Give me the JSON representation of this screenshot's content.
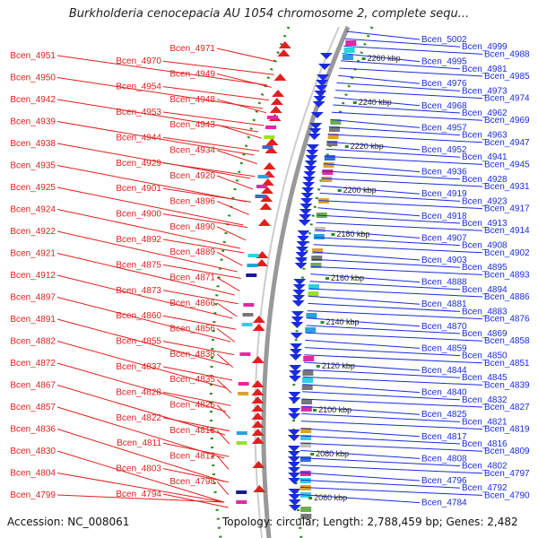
{
  "title": "Burkholderia cenocepacia AU 1054 chromosome 2, complete sequ...",
  "accession": "Accession: NC_008061",
  "topology": "Topology: circular; Length: 2,788,459 bp; Genes: 2,482",
  "colors": {
    "forward": "#e0201e",
    "reverse": "#1a2be0",
    "ticks": "#2a8a1a",
    "backbone": "#888888"
  },
  "scale_labels": [
    "2260 kbp",
    "2240 kbp",
    "2220 kbp",
    "2200 kbp",
    "2180 kbp",
    "2160 kbp",
    "2140 kbp",
    "2120 kbp",
    "2100 kbp",
    "2080 kbp",
    "2060 kbp"
  ],
  "left_labels": [
    "Bcen_4951",
    "Bcen_4950",
    "Bcen_4942",
    "Bcen_4939",
    "Bcen_4938",
    "Bcen_4935",
    "Bcen_4925",
    "Bcen_4924",
    "Bcen_4922",
    "Bcen_4921",
    "Bcen_4912",
    "Bcen_4897",
    "Bcen_4891",
    "Bcen_4882",
    "Bcen_4872",
    "Bcen_4867",
    "Bcen_4857",
    "Bcen_4836",
    "Bcen_4830",
    "Bcen_4804",
    "Bcen_4799"
  ],
  "mid_left_labels": [
    "Bcen_4971",
    "Bcen_4970",
    "Bcen_4949",
    "Bcen_4954",
    "Bcen_4948",
    "Bcen_4953",
    "Bcen_4943",
    "Bcen_4944",
    "Bcen_4934",
    "Bcen_4929",
    "Bcen_4920",
    "Bcen_4901",
    "Bcen_4896",
    "Bcen_4900",
    "Bcen_4890",
    "Bcen_4892",
    "Bcen_4889",
    "Bcen_4875",
    "Bcen_4871",
    "Bcen_4873",
    "Bcen_4866",
    "Bcen_4860",
    "Bcen_4856",
    "Bcen_4855",
    "Bcen_4838",
    "Bcen_4837",
    "Bcen_4835",
    "Bcen_4828",
    "Bcen_4826",
    "Bcen_4822",
    "Bcen_4813",
    "Bcen_4811",
    "Bcen_4812",
    "Bcen_4803",
    "Bcen_4798",
    "Bcen_4794"
  ],
  "right_labels": [
    "Bcen_5002",
    "Bcen_4999",
    "Bcen_4988",
    "Bcen_4995",
    "Bcen_4981",
    "Bcen_4985",
    "Bcen_4976",
    "Bcen_4973",
    "Bcen_4974",
    "Bcen_4968",
    "Bcen_4962",
    "Bcen_4969",
    "Bcen_4957",
    "Bcen_4963",
    "Bcen_4947",
    "Bcen_4952",
    "Bcen_4941",
    "Bcen_4945",
    "Bcen_4936",
    "Bcen_4928",
    "Bcen_4931",
    "Bcen_4919",
    "Bcen_4923",
    "Bcen_4917",
    "Bcen_4918",
    "Bcen_4913",
    "Bcen_4914",
    "Bcen_4907",
    "Bcen_4908",
    "Bcen_4902",
    "Bcen_4903",
    "Bcen_4895",
    "Bcen_4893",
    "Bcen_4888",
    "Bcen_4894",
    "Bcen_4886",
    "Bcen_4881",
    "Bcen_4883",
    "Bcen_4876",
    "Bcen_4870",
    "Bcen_4869",
    "Bcen_4858",
    "Bcen_4859",
    "Bcen_4850",
    "Bcen_4851",
    "Bcen_4844",
    "Bcen_4845",
    "Bcen_4839",
    "Bcen_4840",
    "Bcen_4832",
    "Bcen_4827",
    "Bcen_4825",
    "Bcen_4821",
    "Bcen_4819",
    "Bcen_4817",
    "Bcen_4816",
    "Bcen_4809",
    "Bcen_4808",
    "Bcen_4802",
    "Bcen_4797",
    "Bcen_4796",
    "Bcen_4792",
    "Bcen_4790",
    "Bcen_4784"
  ]
}
